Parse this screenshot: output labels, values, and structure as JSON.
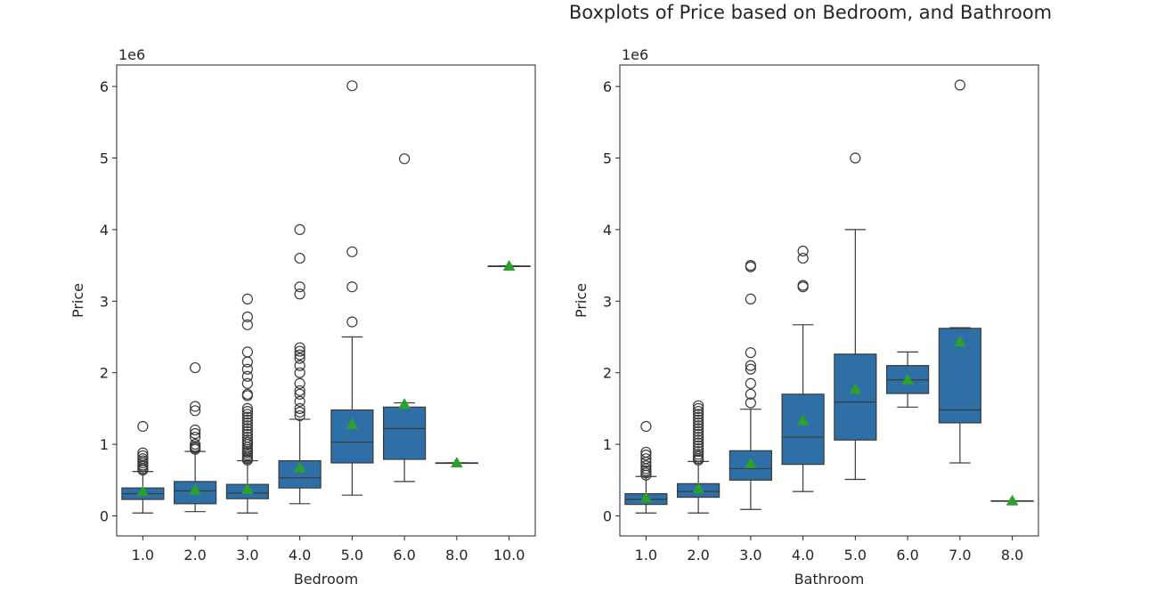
{
  "suptitle": "Boxplots of Price based on Bedroom, and Bathroom",
  "colors": {
    "box": "#2d6fa6",
    "mean": "#2ca02c",
    "line": "#3a3a3a"
  },
  "chart_data": [
    {
      "type": "box",
      "xlabel": "Bedroom",
      "ylabel": "Price",
      "offset_text": "1e6",
      "ylim": [
        -0.28,
        6.3
      ],
      "yticks": [
        0,
        1,
        2,
        3,
        4,
        5,
        6
      ],
      "categories": [
        "1.0",
        "2.0",
        "3.0",
        "4.0",
        "5.0",
        "6.0",
        "8.0",
        "10.0"
      ],
      "boxes": [
        {
          "min": 0.04,
          "q1": 0.23,
          "median": 0.31,
          "q3": 0.39,
          "max": 0.62,
          "mean": 0.34,
          "fliers": [
            0.64,
            0.66,
            0.69,
            0.71,
            0.74,
            0.77,
            0.8,
            0.84,
            0.88,
            1.25
          ]
        },
        {
          "min": 0.06,
          "q1": 0.17,
          "median": 0.35,
          "q3": 0.48,
          "max": 0.9,
          "mean": 0.36,
          "fliers": [
            0.93,
            0.95,
            0.97,
            1.0,
            1.1,
            1.15,
            1.2,
            1.47,
            1.53,
            2.07
          ]
        },
        {
          "min": 0.04,
          "q1": 0.24,
          "median": 0.32,
          "q3": 0.44,
          "max": 0.77,
          "mean": 0.37,
          "fliers": [
            0.78,
            0.8,
            0.82,
            0.85,
            0.88,
            0.9,
            0.93,
            0.96,
            1.0,
            1.03,
            1.06,
            1.1,
            1.14,
            1.18,
            1.22,
            1.26,
            1.3,
            1.34,
            1.38,
            1.42,
            1.46,
            1.5,
            1.68,
            1.7,
            1.85,
            1.95,
            2.05,
            2.15,
            2.29,
            2.67,
            2.78,
            3.03
          ]
        },
        {
          "min": 0.17,
          "q1": 0.39,
          "median": 0.53,
          "q3": 0.77,
          "max": 1.35,
          "mean": 0.67,
          "fliers": [
            1.4,
            1.45,
            1.5,
            1.6,
            1.7,
            1.75,
            1.85,
            2.0,
            2.1,
            2.2,
            2.25,
            2.3,
            2.35,
            3.1,
            3.2,
            3.6,
            4.0
          ]
        },
        {
          "min": 0.29,
          "q1": 0.74,
          "median": 1.03,
          "q3": 1.48,
          "max": 2.5,
          "mean": 1.28,
          "fliers": [
            2.71,
            3.2,
            3.69,
            6.01
          ]
        },
        {
          "min": 0.48,
          "q1": 0.79,
          "median": 1.22,
          "q3": 1.52,
          "max": 1.58,
          "mean": 1.56,
          "fliers": [
            4.99
          ]
        },
        {
          "min": 0.74,
          "q1": 0.74,
          "median": 0.74,
          "q3": 0.74,
          "max": 0.74,
          "mean": 0.74,
          "fliers": []
        },
        {
          "min": 3.49,
          "q1": 3.49,
          "median": 3.49,
          "q3": 3.49,
          "max": 3.49,
          "mean": 3.49,
          "fliers": []
        }
      ]
    },
    {
      "type": "box",
      "xlabel": "Bathroom",
      "ylabel": "Price",
      "offset_text": "1e6",
      "ylim": [
        -0.28,
        6.3
      ],
      "yticks": [
        0,
        1,
        2,
        3,
        4,
        5,
        6
      ],
      "categories": [
        "1.0",
        "2.0",
        "3.0",
        "4.0",
        "5.0",
        "6.0",
        "7.0",
        "8.0"
      ],
      "boxes": [
        {
          "min": 0.04,
          "q1": 0.16,
          "median": 0.23,
          "q3": 0.31,
          "max": 0.55,
          "mean": 0.25,
          "fliers": [
            0.57,
            0.6,
            0.63,
            0.66,
            0.7,
            0.75,
            0.8,
            0.85,
            0.89,
            1.25
          ]
        },
        {
          "min": 0.04,
          "q1": 0.26,
          "median": 0.34,
          "q3": 0.45,
          "max": 0.76,
          "mean": 0.38,
          "fliers": [
            0.78,
            0.8,
            0.83,
            0.86,
            0.9,
            0.94,
            0.98,
            1.02,
            1.06,
            1.1,
            1.14,
            1.18,
            1.22,
            1.26,
            1.3,
            1.34,
            1.38,
            1.42,
            1.46,
            1.5,
            1.54
          ]
        },
        {
          "min": 0.09,
          "q1": 0.5,
          "median": 0.66,
          "q3": 0.91,
          "max": 1.49,
          "mean": 0.73,
          "fliers": [
            1.58,
            1.7,
            1.85,
            2.05,
            2.1,
            2.28,
            3.03,
            3.48,
            3.5
          ]
        },
        {
          "min": 0.34,
          "q1": 0.72,
          "median": 1.1,
          "q3": 1.7,
          "max": 2.67,
          "mean": 1.33,
          "fliers": [
            3.2,
            3.22,
            3.6,
            3.7
          ]
        },
        {
          "min": 0.51,
          "q1": 1.06,
          "median": 1.59,
          "q3": 2.26,
          "max": 4.0,
          "mean": 1.77,
          "fliers": [
            5.0
          ]
        },
        {
          "min": 1.52,
          "q1": 1.71,
          "median": 1.9,
          "q3": 2.1,
          "max": 2.29,
          "mean": 1.9,
          "fliers": []
        },
        {
          "min": 0.74,
          "q1": 1.3,
          "median": 1.48,
          "q3": 2.62,
          "max": 2.63,
          "mean": 2.43,
          "fliers": [
            6.02
          ]
        },
        {
          "min": 0.21,
          "q1": 0.21,
          "median": 0.21,
          "q3": 0.21,
          "max": 0.21,
          "mean": 0.21,
          "fliers": []
        }
      ]
    }
  ]
}
